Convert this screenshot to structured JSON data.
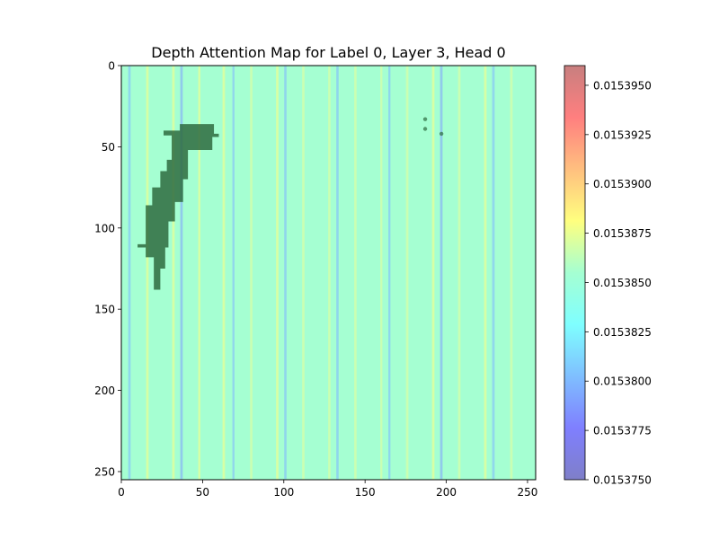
{
  "chart_data": {
    "type": "heatmap",
    "title": "Depth Attention Map for Label 0, Layer 3, Head 0",
    "xlabel": "",
    "ylabel": "",
    "xlim": [
      0,
      255
    ],
    "ylim": [
      255,
      0
    ],
    "x_ticks": [
      0,
      50,
      100,
      150,
      200,
      250
    ],
    "y_ticks": [
      0,
      50,
      100,
      150,
      200,
      250
    ],
    "x_tick_labels": [
      "0",
      "50",
      "100",
      "150",
      "200",
      "250"
    ],
    "y_tick_labels": [
      "0",
      "50",
      "100",
      "150",
      "200",
      "250"
    ],
    "colormap": "jet",
    "overlay_alpha": 0.5,
    "background_value": 0.015384,
    "column_values": [
      {
        "x": 5,
        "value": 0.01538
      },
      {
        "x": 16,
        "value": 0.015388
      },
      {
        "x": 32,
        "value": 0.015388
      },
      {
        "x": 37,
        "value": 0.015379
      },
      {
        "x": 48,
        "value": 0.015388
      },
      {
        "x": 63,
        "value": 0.015388
      },
      {
        "x": 69,
        "value": 0.01538
      },
      {
        "x": 80,
        "value": 0.015387
      },
      {
        "x": 96,
        "value": 0.015388
      },
      {
        "x": 101,
        "value": 0.01538
      },
      {
        "x": 112,
        "value": 0.015387
      },
      {
        "x": 128,
        "value": 0.015387
      },
      {
        "x": 133,
        "value": 0.01538
      },
      {
        "x": 144,
        "value": 0.015387
      },
      {
        "x": 160,
        "value": 0.015387
      },
      {
        "x": 165,
        "value": 0.01538
      },
      {
        "x": 176,
        "value": 0.015387
      },
      {
        "x": 192,
        "value": 0.015388
      },
      {
        "x": 197,
        "value": 0.015379
      },
      {
        "x": 208,
        "value": 0.015387
      },
      {
        "x": 224,
        "value": 0.015388
      },
      {
        "x": 229,
        "value": 0.01538
      },
      {
        "x": 240,
        "value": 0.015387
      }
    ],
    "depth_region": {
      "color": "#2e6b3f",
      "polygon": [
        [
          20,
          138
        ],
        [
          24,
          138
        ],
        [
          24,
          125
        ],
        [
          27,
          125
        ],
        [
          27,
          112
        ],
        [
          29,
          112
        ],
        [
          29,
          96
        ],
        [
          33,
          96
        ],
        [
          33,
          84
        ],
        [
          38,
          84
        ],
        [
          38,
          70
        ],
        [
          41,
          70
        ],
        [
          41,
          52
        ],
        [
          56,
          52
        ],
        [
          56,
          44
        ],
        [
          60,
          44
        ],
        [
          60,
          42
        ],
        [
          57,
          42
        ],
        [
          57,
          36
        ],
        [
          36,
          36
        ],
        [
          36,
          40
        ],
        [
          26,
          40
        ],
        [
          26,
          43
        ],
        [
          31,
          43
        ],
        [
          31,
          58
        ],
        [
          28,
          58
        ],
        [
          28,
          65
        ],
        [
          24,
          65
        ],
        [
          24,
          75
        ],
        [
          19,
          75
        ],
        [
          19,
          86
        ],
        [
          15,
          86
        ],
        [
          15,
          110
        ],
        [
          10,
          110
        ],
        [
          10,
          112
        ],
        [
          15,
          112
        ],
        [
          15,
          118
        ],
        [
          20,
          118
        ]
      ],
      "specks": [
        [
          187,
          33
        ],
        [
          187,
          39
        ],
        [
          197,
          42
        ]
      ]
    },
    "colorbar": {
      "min": 0.015375,
      "max": 0.015396,
      "ticks": [
        0.015375,
        0.0153775,
        0.01538,
        0.0153825,
        0.015385,
        0.0153875,
        0.01539,
        0.0153925,
        0.015395
      ],
      "tick_labels": [
        "0.0153750",
        "0.0153775",
        "0.0153800",
        "0.0153825",
        "0.0153850",
        "0.0153875",
        "0.0153900",
        "0.0153925",
        "0.0153950"
      ]
    }
  }
}
